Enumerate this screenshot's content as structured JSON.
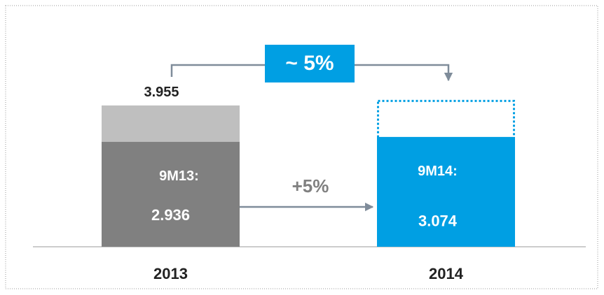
{
  "chart_data": {
    "type": "bar",
    "categories": [
      "2013",
      "2014"
    ],
    "ylim": [
      0,
      4.5
    ],
    "full_year": {
      "values": [
        3.955,
        4.11
      ],
      "value_labels": [
        "3.955",
        null
      ],
      "colors": [
        "#bfbfbf",
        "#009fe3"
      ],
      "dashed": [
        false,
        true
      ]
    },
    "nine_months": {
      "values": [
        2.936,
        3.074
      ],
      "value_labels": [
        "2.936",
        "3.074"
      ],
      "period_labels": [
        "9M13:",
        "9M14:"
      ],
      "colors": [
        "#808080",
        "#009fe3"
      ]
    },
    "annotations": {
      "growth_arrow": "+5%",
      "full_year_growth": "~ 5%"
    }
  }
}
